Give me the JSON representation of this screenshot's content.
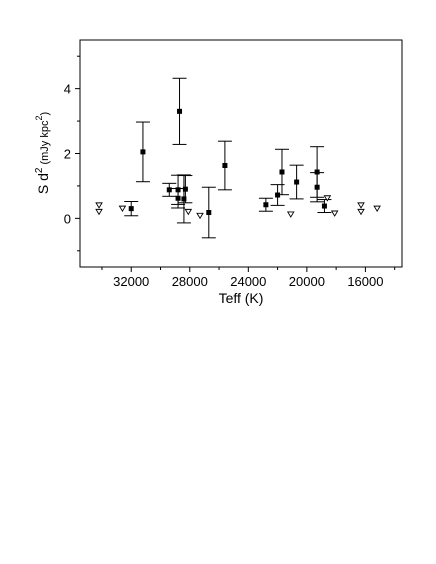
{
  "chart_data": {
    "type": "scatter",
    "title": "",
    "xlabel": "Teff (K)",
    "ylabel_parts": {
      "main": "S d",
      "sup1": "2",
      "unit": " (mJy kpc",
      "sup2": "2",
      "close": ")"
    },
    "xlim": [
      35500,
      13500
    ],
    "ylim": [
      -1.5,
      5.5
    ],
    "x_inverted": true,
    "grid": false,
    "x_ticks": [
      32000,
      28000,
      24000,
      20000,
      16000
    ],
    "x_tick_labels": [
      "32000",
      "28000",
      "24000",
      "20000",
      "16000"
    ],
    "x_minor_ticks": [
      34000,
      30000,
      26000,
      22000,
      18000,
      14000
    ],
    "y_ticks": [
      0,
      2,
      4
    ],
    "y_tick_labels": [
      "0",
      "2",
      "4"
    ],
    "y_minor_ticks": [
      -1,
      1,
      3,
      5
    ],
    "series": [
      {
        "marker": "filled-square",
        "points": [
          {
            "x": 32000,
            "y": 0.3,
            "err": 0.22
          },
          {
            "x": 31200,
            "y": 2.05,
            "err": 0.92
          },
          {
            "x": 29400,
            "y": 0.88,
            "err": 0.2
          },
          {
            "x": 28700,
            "y": 3.3,
            "err": 1.02
          },
          {
            "x": 28800,
            "y": 0.88,
            "err": 0.45
          },
          {
            "x": 28800,
            "y": 0.62,
            "err": 0.3
          },
          {
            "x": 28300,
            "y": 0.9,
            "err": 0.42
          },
          {
            "x": 28400,
            "y": 0.6,
            "err": 0.74
          },
          {
            "x": 26700,
            "y": 0.18,
            "err": 0.78
          },
          {
            "x": 25600,
            "y": 1.63,
            "err": 0.75
          },
          {
            "x": 22800,
            "y": 0.42,
            "err": 0.2
          },
          {
            "x": 22000,
            "y": 0.72,
            "err": 0.32
          },
          {
            "x": 21700,
            "y": 1.43,
            "err": 0.7
          },
          {
            "x": 20700,
            "y": 1.12,
            "err": 0.52
          },
          {
            "x": 19300,
            "y": 1.43,
            "err": 0.78
          },
          {
            "x": 19300,
            "y": 0.96,
            "err": 0.45
          },
          {
            "x": 18800,
            "y": 0.38,
            "err": 0.2
          }
        ]
      },
      {
        "marker": "open-triangle-down",
        "points": [
          {
            "x": 34200,
            "y": 0.4
          },
          {
            "x": 34200,
            "y": 0.2
          },
          {
            "x": 32600,
            "y": 0.3
          },
          {
            "x": 28100,
            "y": 0.2
          },
          {
            "x": 27300,
            "y": 0.08
          },
          {
            "x": 21100,
            "y": 0.12
          },
          {
            "x": 18600,
            "y": 0.62
          },
          {
            "x": 18100,
            "y": 0.15
          },
          {
            "x": 16300,
            "y": 0.4
          },
          {
            "x": 16300,
            "y": 0.2
          },
          {
            "x": 15200,
            "y": 0.3
          }
        ]
      }
    ]
  }
}
